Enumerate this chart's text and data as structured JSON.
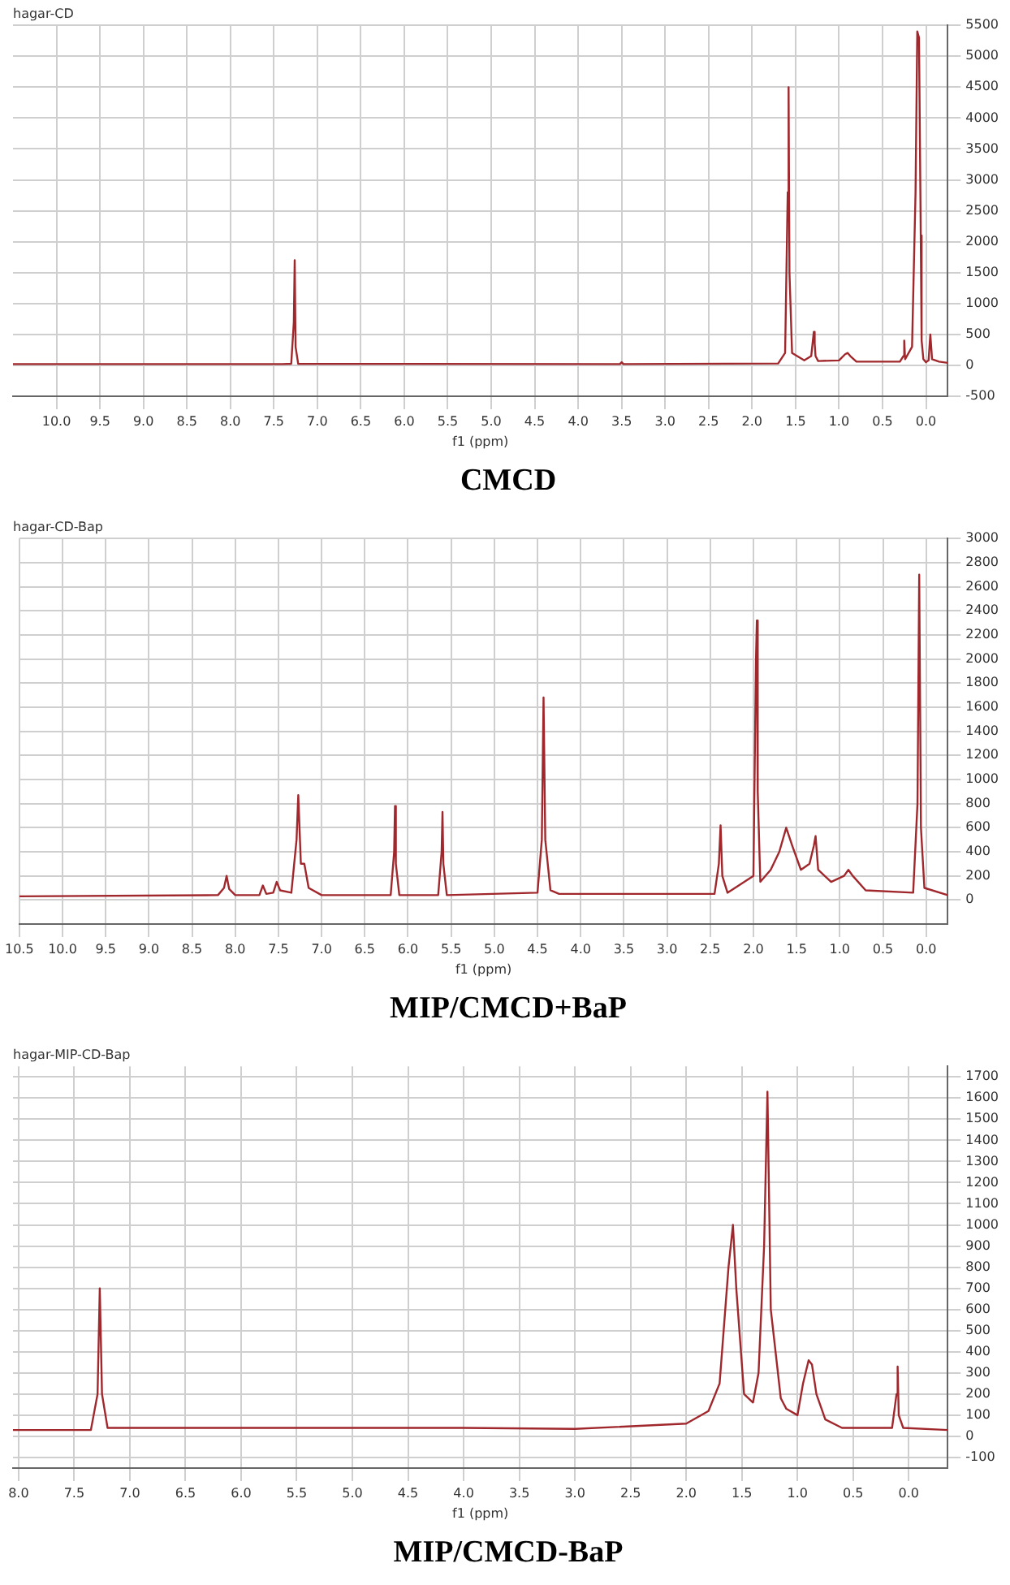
{
  "chart_data": [
    {
      "type": "line",
      "title": "CMCD",
      "subtitle": "hagar-CD",
      "xlabel": "f1 (ppm)",
      "grid": true,
      "legend": false,
      "marker": "none",
      "line_style": "solid",
      "xlim": [
        10.5,
        -0.25
      ],
      "ylim": [
        -500,
        5500
      ],
      "xticks": [
        {
          "value": 10,
          "label": "10.0"
        },
        {
          "value": 9.5,
          "label": "9.5"
        },
        {
          "value": 9,
          "label": "9.0"
        },
        {
          "value": 8.5,
          "label": "8.5"
        },
        {
          "value": 8,
          "label": "8.0"
        },
        {
          "value": 7.5,
          "label": "7.5"
        },
        {
          "value": 7,
          "label": "7.0"
        },
        {
          "value": 6.5,
          "label": "6.5"
        },
        {
          "value": 6,
          "label": "6.0"
        },
        {
          "value": 5.5,
          "label": "5.5"
        },
        {
          "value": 5,
          "label": "5.0"
        },
        {
          "value": 4.5,
          "label": "4.5"
        },
        {
          "value": 4,
          "label": "4.0"
        },
        {
          "value": 3.5,
          "label": "3.5"
        },
        {
          "value": 3,
          "label": "3.0"
        },
        {
          "value": 2.5,
          "label": "2.5"
        },
        {
          "value": 2,
          "label": "2.0"
        },
        {
          "value": 1.5,
          "label": "1.5"
        },
        {
          "value": 1,
          "label": "1.0"
        },
        {
          "value": 0.5,
          "label": "0.5"
        },
        {
          "value": 0,
          "label": "0.0"
        }
      ],
      "yticks": [
        -500,
        0,
        500,
        1000,
        1500,
        2000,
        2500,
        3000,
        3500,
        4000,
        4500,
        5000,
        5500
      ],
      "series": [
        {
          "color": "#a0282d",
          "x": [
            10.5,
            7.4,
            7.3,
            7.27,
            7.26,
            7.25,
            7.22,
            3.6,
            3.52,
            3.5,
            3.48,
            1.7,
            1.62,
            1.59,
            1.58,
            1.57,
            1.54,
            1.4,
            1.32,
            1.29,
            1.28,
            1.27,
            1.24,
            1.0,
            0.93,
            0.9,
            0.87,
            0.8,
            0.3,
            0.26,
            0.25,
            0.24,
            0.16,
            0.12,
            0.1,
            0.08,
            0.06,
            0.05,
            0.03,
            0,
            -0.03,
            -0.05,
            -0.07,
            -0.15,
            -0.25
          ],
          "values": [
            20,
            20,
            25,
            700,
            1700,
            300,
            25,
            20,
            20,
            50,
            20,
            30,
            200,
            2800,
            4500,
            1500,
            200,
            80,
            150,
            540,
            350,
            150,
            70,
            80,
            180,
            200,
            150,
            60,
            60,
            150,
            400,
            100,
            300,
            2800,
            5400,
            5300,
            2100,
            400,
            100,
            50,
            80,
            500,
            100,
            60,
            40
          ]
        }
      ]
    },
    {
      "type": "line",
      "title": "MIP/CMCD+BaP",
      "subtitle": "hagar-CD-Bap",
      "xlabel": "f1 (ppm)",
      "grid": true,
      "legend": false,
      "marker": "none",
      "line_style": "solid",
      "xlim": [
        10.5,
        -0.25
      ],
      "ylim": [
        -200,
        3000
      ],
      "xticks": [
        {
          "value": 10.5,
          "label": "10.5"
        },
        {
          "value": 10,
          "label": "10.0"
        },
        {
          "value": 9.5,
          "label": "9.5"
        },
        {
          "value": 9,
          "label": "9.0"
        },
        {
          "value": 8.5,
          "label": "8.5"
        },
        {
          "value": 8,
          "label": "8.0"
        },
        {
          "value": 7.5,
          "label": "7.5"
        },
        {
          "value": 7,
          "label": "7.0"
        },
        {
          "value": 6.5,
          "label": "6.5"
        },
        {
          "value": 6,
          "label": "6.0"
        },
        {
          "value": 5.5,
          "label": "5.5"
        },
        {
          "value": 5,
          "label": "5.0"
        },
        {
          "value": 4.5,
          "label": "4.5"
        },
        {
          "value": 4,
          "label": "4.0"
        },
        {
          "value": 3.5,
          "label": "3.5"
        },
        {
          "value": 3,
          "label": "3.0"
        },
        {
          "value": 2.5,
          "label": "2.5"
        },
        {
          "value": 2,
          "label": "2.0"
        },
        {
          "value": 1.5,
          "label": "1.5"
        },
        {
          "value": 1,
          "label": "1.0"
        },
        {
          "value": 0.5,
          "label": "0.5"
        },
        {
          "value": 0,
          "label": "0.0"
        }
      ],
      "yticks": [
        0,
        200,
        400,
        600,
        800,
        1000,
        1200,
        1400,
        1600,
        1800,
        2000,
        2200,
        2400,
        2600,
        2800,
        3000
      ],
      "series": [
        {
          "color": "#a0282d",
          "x": [
            10.5,
            8.2,
            8.13,
            8.1,
            8.07,
            8.0,
            7.72,
            7.68,
            7.64,
            7.56,
            7.52,
            7.48,
            7.35,
            7.29,
            7.27,
            7.24,
            7.2,
            7.15,
            7.0,
            6.2,
            6.16,
            6.15,
            6.14,
            6.1,
            5.65,
            5.61,
            5.6,
            5.59,
            5.55,
            4.5,
            4.45,
            4.43,
            4.41,
            4.35,
            4.25,
            2.45,
            2.4,
            2.38,
            2.36,
            2.3,
            2.0,
            1.97,
            1.96,
            1.95,
            1.92,
            1.8,
            1.7,
            1.62,
            1.55,
            1.45,
            1.35,
            1.3,
            1.28,
            1.25,
            1.1,
            0.95,
            0.9,
            0.85,
            0.7,
            0.15,
            0.1,
            0.08,
            0.06,
            0.02,
            -0.25
          ],
          "values": [
            30,
            40,
            100,
            200,
            90,
            40,
            40,
            120,
            50,
            60,
            150,
            80,
            60,
            500,
            870,
            300,
            300,
            100,
            40,
            40,
            400,
            780,
            300,
            40,
            40,
            400,
            730,
            300,
            40,
            60,
            500,
            1680,
            500,
            80,
            50,
            50,
            300,
            620,
            200,
            60,
            200,
            2000,
            2320,
            900,
            150,
            250,
            400,
            600,
            450,
            250,
            300,
            450,
            530,
            250,
            150,
            200,
            250,
            200,
            80,
            60,
            800,
            2700,
            600,
            100,
            40
          ]
        }
      ]
    },
    {
      "type": "line",
      "title": "MIP/CMCD-BaP",
      "subtitle": "hagar-MIP-CD-Bap",
      "xlabel": "f1 (ppm)",
      "grid": true,
      "legend": false,
      "marker": "none",
      "line_style": "solid",
      "xlim": [
        8.05,
        -0.35
      ],
      "ylim": [
        -150,
        1750
      ],
      "xticks": [
        {
          "value": 8,
          "label": "8.0"
        },
        {
          "value": 7.5,
          "label": "7.5"
        },
        {
          "value": 7,
          "label": "7.0"
        },
        {
          "value": 6.5,
          "label": "6.5"
        },
        {
          "value": 6,
          "label": "6.0"
        },
        {
          "value": 5.5,
          "label": "5.5"
        },
        {
          "value": 5,
          "label": "5.0"
        },
        {
          "value": 4.5,
          "label": "4.5"
        },
        {
          "value": 4,
          "label": "4.0"
        },
        {
          "value": 3.5,
          "label": "3.5"
        },
        {
          "value": 3,
          "label": "3.0"
        },
        {
          "value": 2.5,
          "label": "2.5"
        },
        {
          "value": 2,
          "label": "2.0"
        },
        {
          "value": 1.5,
          "label": "1.5"
        },
        {
          "value": 1,
          "label": "1.0"
        },
        {
          "value": 0.5,
          "label": "0.5"
        },
        {
          "value": 0,
          "label": "0.0"
        }
      ],
      "yticks": [
        -100,
        0,
        100,
        200,
        300,
        400,
        500,
        600,
        700,
        800,
        900,
        1000,
        1100,
        1200,
        1300,
        1400,
        1500,
        1600,
        1700
      ],
      "series": [
        {
          "color": "#a0282d",
          "x": [
            8.05,
            7.35,
            7.29,
            7.27,
            7.25,
            7.2,
            4.0,
            3.0,
            2.0,
            1.8,
            1.7,
            1.62,
            1.58,
            1.55,
            1.48,
            1.4,
            1.35,
            1.3,
            1.27,
            1.24,
            1.15,
            1.1,
            1.0,
            0.95,
            0.9,
            0.87,
            0.83,
            0.75,
            0.6,
            0.15,
            0.11,
            0.1,
            0.09,
            0.05,
            -0.35
          ],
          "values": [
            30,
            30,
            200,
            700,
            200,
            40,
            40,
            35,
            60,
            120,
            250,
            800,
            1000,
            700,
            200,
            160,
            300,
            900,
            1630,
            600,
            180,
            130,
            100,
            250,
            360,
            340,
            200,
            80,
            40,
            40,
            200,
            330,
            100,
            40,
            30
          ]
        }
      ]
    }
  ]
}
